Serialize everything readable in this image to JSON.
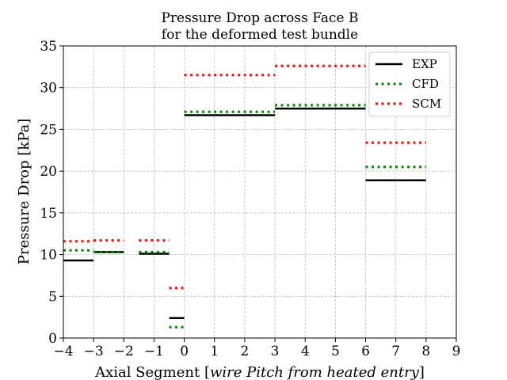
{
  "chart_data": {
    "type": "line",
    "title": "Pressure Drop across Face B\nfor the deformed test bundle",
    "title_lines": [
      "Pressure Drop across Face B",
      "for the deformed test bundle"
    ],
    "xlabel_parts": [
      "Axial Segment [",
      "wire Pitch from heated entry",
      "]"
    ],
    "ylabel": "Pressure Drop [kPa]",
    "xlim": [
      -4,
      9
    ],
    "ylim": [
      0,
      35
    ],
    "xticks": [
      -4,
      -3,
      -2,
      -1,
      0,
      1,
      2,
      3,
      4,
      5,
      6,
      7,
      8,
      9
    ],
    "xtick_labels": [
      "−4",
      "−3",
      "−2",
      "−1",
      "0",
      "1",
      "2",
      "3",
      "4",
      "5",
      "6",
      "7",
      "8",
      "9"
    ],
    "yticks": [
      0,
      5,
      10,
      15,
      20,
      25,
      30,
      35
    ],
    "ytick_labels": [
      "0",
      "5",
      "10",
      "15",
      "20",
      "25",
      "30",
      "35"
    ],
    "grid": true,
    "legend_position": "top-right",
    "segments": [
      [
        -4,
        -3
      ],
      [
        -3,
        -2
      ],
      [
        -1.5,
        -0.5
      ],
      [
        -0.5,
        0
      ],
      [
        0,
        3
      ],
      [
        3,
        6
      ],
      [
        6,
        8
      ]
    ],
    "series": [
      {
        "name": "EXP",
        "color": "#000000",
        "style": "solid",
        "values": [
          9.3,
          10.3,
          10.1,
          2.4,
          26.7,
          27.5,
          18.9
        ]
      },
      {
        "name": "CFD",
        "color": "#008000",
        "style": "dotted",
        "values": [
          10.5,
          10.3,
          10.3,
          1.3,
          27.1,
          27.9,
          20.5
        ]
      },
      {
        "name": "SCM",
        "color": "#ff0000",
        "style": "dotted",
        "values": [
          11.6,
          11.7,
          11.7,
          6.0,
          31.5,
          32.6,
          23.4
        ]
      }
    ]
  }
}
